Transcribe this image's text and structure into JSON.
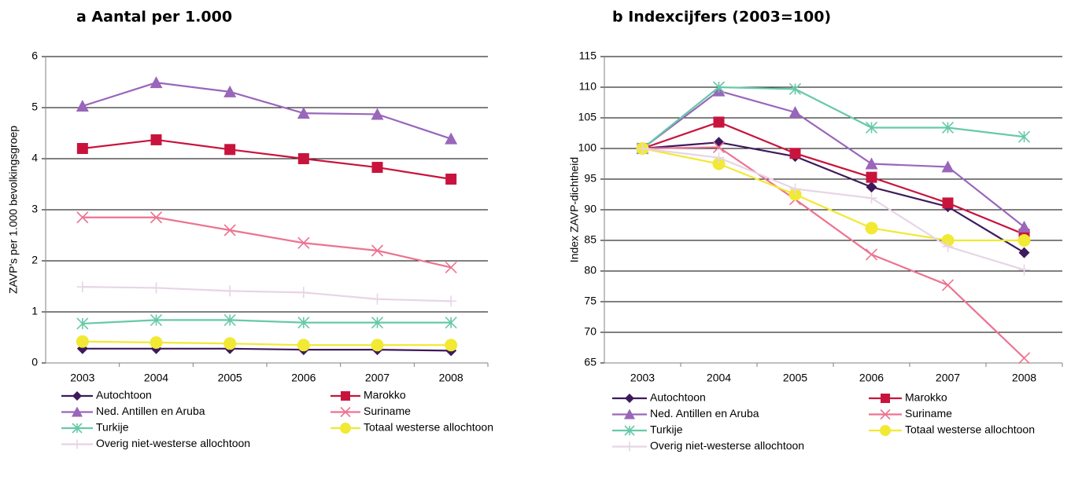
{
  "chart_data": [
    {
      "type": "line",
      "title": "a Aantal per 1.000",
      "y_label": "ZAVP's per 1.000 bevolkingsgroep",
      "categories": [
        "2003",
        "2004",
        "2005",
        "2006",
        "2007",
        "2008"
      ],
      "ylim": [
        0,
        6
      ],
      "yticks": [
        0,
        1,
        2,
        3,
        4,
        5,
        6
      ],
      "grid": true,
      "legend": "bottom",
      "series": [
        {
          "name": "Autochtoon",
          "color": "#3d1a5c",
          "marker": "diamond",
          "values": [
            0.28,
            0.28,
            0.28,
            0.26,
            0.26,
            0.24
          ]
        },
        {
          "name": "Marokko",
          "color": "#c8143c",
          "marker": "square",
          "values": [
            4.2,
            4.37,
            4.18,
            4.0,
            3.83,
            3.6
          ]
        },
        {
          "name": "Ned. Antillen en Aruba",
          "color": "#9966bb",
          "marker": "triangle",
          "values": [
            5.03,
            5.49,
            5.31,
            4.89,
            4.87,
            4.39
          ]
        },
        {
          "name": "Suriname",
          "color": "#ec7391",
          "marker": "x",
          "values": [
            2.85,
            2.85,
            2.6,
            2.35,
            2.2,
            1.87
          ]
        },
        {
          "name": "Turkije",
          "color": "#66c9a8",
          "marker": "asterisk",
          "values": [
            0.77,
            0.84,
            0.84,
            0.79,
            0.79,
            0.79
          ]
        },
        {
          "name": "Totaal westerse allochtoon",
          "color": "#f1e933",
          "marker": "circle",
          "values": [
            0.42,
            0.4,
            0.38,
            0.35,
            0.35,
            0.35
          ]
        },
        {
          "name": "Overig niet-westerse allochtoon",
          "color": "#e8d4e6",
          "marker": "plus",
          "values": [
            1.49,
            1.47,
            1.41,
            1.38,
            1.25,
            1.21
          ]
        }
      ]
    },
    {
      "type": "line",
      "title": "b Indexcijfers (2003=100)",
      "y_label": "Index ZAVP-dichtheid",
      "categories": [
        "2003",
        "2004",
        "2005",
        "2006",
        "2007",
        "2008"
      ],
      "ylim": [
        65,
        115
      ],
      "yticks": [
        65,
        70,
        75,
        80,
        85,
        90,
        95,
        100,
        105,
        110,
        115
      ],
      "grid": true,
      "legend": "bottom",
      "series": [
        {
          "name": "Autochtoon",
          "color": "#3d1a5c",
          "marker": "diamond",
          "values": [
            100,
            101,
            98.7,
            93.7,
            90.5,
            83
          ]
        },
        {
          "name": "Marokko",
          "color": "#c8143c",
          "marker": "square",
          "values": [
            100,
            104.3,
            99.2,
            95.3,
            91.1,
            86
          ]
        },
        {
          "name": "Ned. Antillen en Aruba",
          "color": "#9966bb",
          "marker": "triangle",
          "values": [
            100,
            109.4,
            105.9,
            97.5,
            97,
            87.2
          ]
        },
        {
          "name": "Suriname",
          "color": "#ec7391",
          "marker": "x",
          "values": [
            100,
            100.2,
            91.7,
            82.7,
            77.7,
            65.8
          ]
        },
        {
          "name": "Turkije",
          "color": "#66c9a8",
          "marker": "asterisk",
          "values": [
            100,
            110,
            109.7,
            103.4,
            103.4,
            101.9
          ]
        },
        {
          "name": "Totaal westerse allochtoon",
          "color": "#f1e933",
          "marker": "circle",
          "values": [
            100,
            97.5,
            92.5,
            87,
            85,
            85
          ]
        },
        {
          "name": "Overig niet-westerse allochtoon",
          "color": "#e8d4e6",
          "marker": "plus",
          "values": [
            100,
            98.5,
            93.4,
            91.9,
            84,
            80.2
          ]
        }
      ]
    }
  ]
}
